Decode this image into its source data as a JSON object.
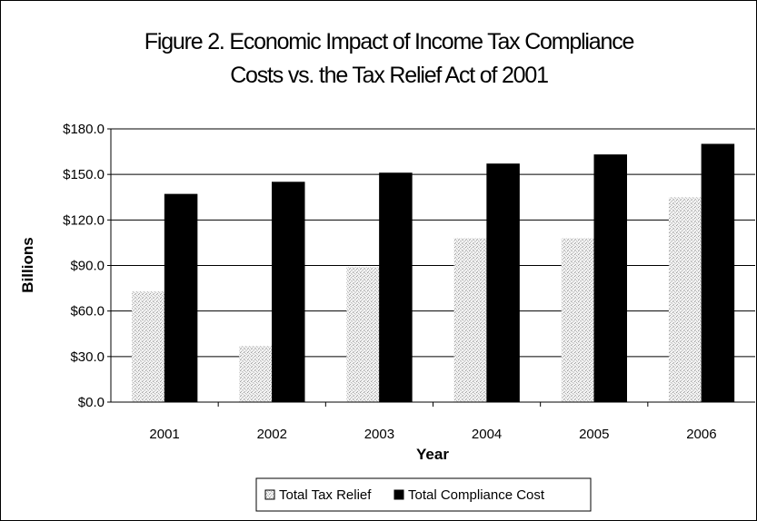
{
  "chart_data": {
    "type": "bar",
    "title_lines": [
      "Figure 2. Economic Impact of Income Tax Compliance",
      "Costs vs. the Tax Relief Act of 2001"
    ],
    "xlabel": "Year",
    "ylabel": "Billions",
    "categories": [
      "2001",
      "2002",
      "2003",
      "2004",
      "2005",
      "2006"
    ],
    "ylim": [
      0,
      180
    ],
    "yticks": [
      0,
      30,
      60,
      90,
      120,
      150,
      180
    ],
    "ytick_labels": [
      "$0.0",
      "$30.0",
      "$60.0",
      "$90.0",
      "$120.0",
      "$150.0",
      "$180.0"
    ],
    "grid": true,
    "legend_position": "bottom",
    "series": [
      {
        "name": "Total Tax Relief",
        "values": [
          73,
          37,
          89,
          108,
          108,
          135
        ],
        "color": "#e6e6e6",
        "pattern": "stipple"
      },
      {
        "name": "Total Compliance Cost",
        "values": [
          137,
          145,
          151,
          157,
          163,
          170
        ],
        "color": "#000000",
        "pattern": "solid"
      }
    ]
  }
}
